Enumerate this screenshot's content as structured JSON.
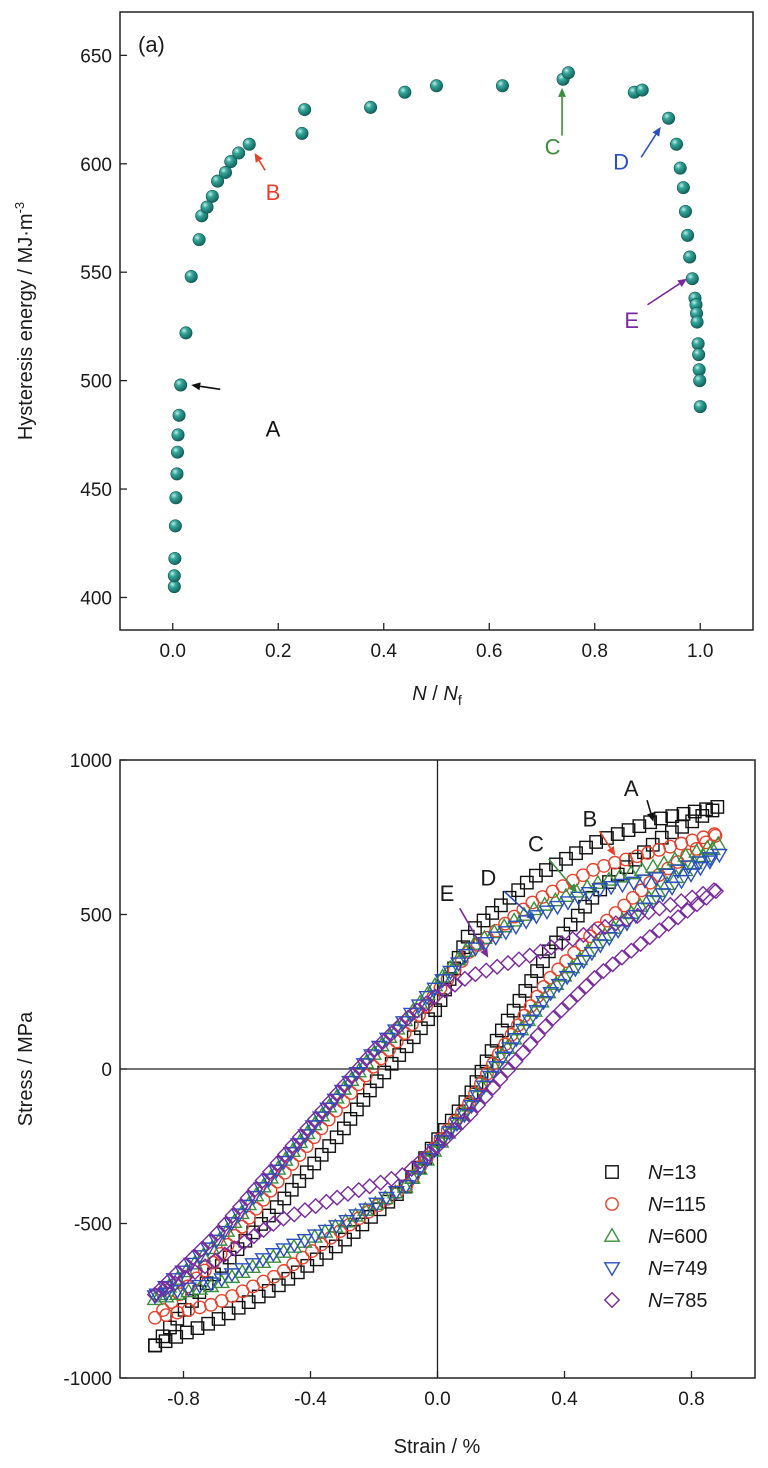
{
  "chart_data": [
    {
      "type": "scatter",
      "panel_label": "(a)",
      "xlabel": {
        "main": "N",
        "sep": " / ",
        "den": "N",
        "sub": "f"
      },
      "ylabel": {
        "main": "Hysteresis energy / MJ·m",
        "sup": "-3"
      },
      "xlim": [
        -0.1,
        1.1
      ],
      "ylim": [
        385,
        670
      ],
      "xticks": [
        "0.0",
        "0.2",
        "0.4",
        "0.6",
        "0.8",
        "1.0"
      ],
      "xtick_values": [
        0.0,
        0.2,
        0.4,
        0.6,
        0.8,
        1.0
      ],
      "yticks": [
        "400",
        "450",
        "500",
        "550",
        "600",
        "650"
      ],
      "ytick_values": [
        400,
        450,
        500,
        550,
        600,
        650
      ],
      "grid": false,
      "marker_color": "#1f8f86",
      "points": [
        {
          "x": 0.003,
          "y": 405
        },
        {
          "x": 0.003,
          "y": 410
        },
        {
          "x": 0.004,
          "y": 418
        },
        {
          "x": 0.005,
          "y": 433
        },
        {
          "x": 0.006,
          "y": 446
        },
        {
          "x": 0.008,
          "y": 457
        },
        {
          "x": 0.009,
          "y": 467
        },
        {
          "x": 0.01,
          "y": 475
        },
        {
          "x": 0.012,
          "y": 484
        },
        {
          "x": 0.015,
          "y": 498
        },
        {
          "x": 0.025,
          "y": 522
        },
        {
          "x": 0.035,
          "y": 548
        },
        {
          "x": 0.05,
          "y": 565
        },
        {
          "x": 0.055,
          "y": 576
        },
        {
          "x": 0.065,
          "y": 580
        },
        {
          "x": 0.075,
          "y": 585
        },
        {
          "x": 0.085,
          "y": 592
        },
        {
          "x": 0.1,
          "y": 596
        },
        {
          "x": 0.11,
          "y": 601
        },
        {
          "x": 0.125,
          "y": 605
        },
        {
          "x": 0.145,
          "y": 609
        },
        {
          "x": 0.245,
          "y": 614
        },
        {
          "x": 0.25,
          "y": 625
        },
        {
          "x": 0.375,
          "y": 626
        },
        {
          "x": 0.44,
          "y": 633
        },
        {
          "x": 0.5,
          "y": 636
        },
        {
          "x": 0.625,
          "y": 636
        },
        {
          "x": 0.74,
          "y": 639
        },
        {
          "x": 0.75,
          "y": 642
        },
        {
          "x": 0.875,
          "y": 633
        },
        {
          "x": 0.89,
          "y": 634
        },
        {
          "x": 0.94,
          "y": 621
        },
        {
          "x": 0.955,
          "y": 609
        },
        {
          "x": 0.962,
          "y": 598
        },
        {
          "x": 0.968,
          "y": 589
        },
        {
          "x": 0.972,
          "y": 578
        },
        {
          "x": 0.976,
          "y": 567
        },
        {
          "x": 0.98,
          "y": 557
        },
        {
          "x": 0.985,
          "y": 547
        },
        {
          "x": 0.99,
          "y": 538
        },
        {
          "x": 0.992,
          "y": 535
        },
        {
          "x": 0.993,
          "y": 531
        },
        {
          "x": 0.994,
          "y": 527
        },
        {
          "x": 0.996,
          "y": 517
        },
        {
          "x": 0.997,
          "y": 512
        },
        {
          "x": 0.998,
          "y": 505
        },
        {
          "x": 0.999,
          "y": 500
        },
        {
          "x": 1.0,
          "y": 488
        }
      ],
      "annotations": [
        {
          "text": "A",
          "color": "#111111",
          "label": [
            0.19,
            478
          ],
          "tip": [
            0.035,
            498
          ],
          "tail": [
            0.09,
            496
          ]
        },
        {
          "text": "B",
          "color": "#e8402a",
          "label": [
            0.19,
            587
          ],
          "tip": [
            0.155,
            605
          ],
          "tail": [
            0.175,
            597
          ]
        },
        {
          "text": "C",
          "color": "#3a8f3a",
          "label": [
            0.72,
            608
          ],
          "tip": [
            0.738,
            635
          ],
          "tail": [
            0.738,
            613
          ]
        },
        {
          "text": "D",
          "color": "#2a4fc0",
          "label": [
            0.85,
            601
          ],
          "tip": [
            0.925,
            617
          ],
          "tail": [
            0.888,
            603
          ]
        },
        {
          "text": "E",
          "color": "#7a2aa0",
          "label": [
            0.87,
            528
          ],
          "tip": [
            0.975,
            547
          ],
          "tail": [
            0.9,
            535
          ]
        }
      ]
    },
    {
      "type": "line",
      "xlabel": "Strain / %",
      "ylabel": "Stress / MPa",
      "xlim": [
        -1.0,
        1.0
      ],
      "ylim": [
        -1000,
        1000
      ],
      "xticks": [
        "-0.8",
        "-0.4",
        "0.0",
        "0.4",
        "0.8"
      ],
      "xtick_values": [
        -0.8,
        -0.4,
        0.0,
        0.4,
        0.8
      ],
      "yticks": [
        "-1000",
        "-500",
        "0",
        "500",
        "1000"
      ],
      "ytick_values": [
        -1000,
        -500,
        0,
        500,
        1000
      ],
      "grid": false,
      "reference_lines": {
        "x": 0,
        "y": 0
      },
      "legend_position": "bottom-right",
      "series": [
        {
          "name": "N=13",
          "legend_italic": "N",
          "legend_rest": "=13",
          "marker": "square",
          "color": "#111111",
          "loading": [
            [
              -0.89,
              -895
            ],
            [
              -0.7,
              -815
            ],
            [
              -0.5,
              -700
            ],
            [
              -0.3,
              -560
            ],
            [
              -0.1,
              -380
            ],
            [
              0.0,
              -230
            ],
            [
              0.1,
              -90
            ],
            [
              0.2,
              120
            ],
            [
              0.35,
              380
            ],
            [
              0.5,
              570
            ],
            [
              0.7,
              745
            ],
            [
              0.89,
              850
            ]
          ],
          "unloading": [
            [
              0.89,
              850
            ],
            [
              0.7,
              810
            ],
            [
              0.5,
              735
            ],
            [
              0.3,
              620
            ],
            [
              0.1,
              440
            ],
            [
              0.0,
              200
            ],
            [
              -0.1,
              70
            ],
            [
              -0.2,
              -50
            ],
            [
              -0.3,
              -200
            ],
            [
              -0.5,
              -440
            ],
            [
              -0.7,
              -660
            ],
            [
              -0.89,
              -895
            ]
          ]
        },
        {
          "name": "N=115",
          "legend_italic": "N",
          "legend_rest": "=115",
          "marker": "circle",
          "color": "#e8402a",
          "loading": [
            [
              -0.89,
              -805
            ],
            [
              -0.7,
              -760
            ],
            [
              -0.5,
              -665
            ],
            [
              -0.3,
              -520
            ],
            [
              -0.1,
              -380
            ],
            [
              0.0,
              -240
            ],
            [
              0.1,
              -110
            ],
            [
              0.2,
              60
            ],
            [
              0.35,
              290
            ],
            [
              0.5,
              450
            ],
            [
              0.7,
              630
            ],
            [
              0.89,
              765
            ]
          ],
          "unloading": [
            [
              0.89,
              765
            ],
            [
              0.7,
              710
            ],
            [
              0.5,
              650
            ],
            [
              0.3,
              540
            ],
            [
              0.1,
              380
            ],
            [
              0.0,
              250
            ],
            [
              -0.1,
              120
            ],
            [
              -0.2,
              10
            ],
            [
              -0.3,
              -110
            ],
            [
              -0.5,
              -360
            ],
            [
              -0.7,
              -620
            ],
            [
              -0.89,
              -805
            ]
          ]
        },
        {
          "name": "N=600",
          "legend_italic": "N",
          "legend_rest": "=600",
          "marker": "triangle-up",
          "color": "#3a8f3a",
          "loading": [
            [
              -0.89,
              -745
            ],
            [
              -0.7,
              -700
            ],
            [
              -0.5,
              -600
            ],
            [
              -0.3,
              -500
            ],
            [
              -0.1,
              -380
            ],
            [
              0.0,
              -250
            ],
            [
              0.1,
              -120
            ],
            [
              0.2,
              40
            ],
            [
              0.35,
              250
            ],
            [
              0.5,
              410
            ],
            [
              0.7,
              580
            ],
            [
              0.89,
              730
            ]
          ],
          "unloading": [
            [
              0.89,
              730
            ],
            [
              0.7,
              660
            ],
            [
              0.5,
              600
            ],
            [
              0.3,
              515
            ],
            [
              0.1,
              395
            ],
            [
              0.0,
              280
            ],
            [
              -0.1,
              160
            ],
            [
              -0.2,
              50
            ],
            [
              -0.3,
              -70
            ],
            [
              -0.5,
              -320
            ],
            [
              -0.7,
              -570
            ],
            [
              -0.89,
              -745
            ]
          ]
        },
        {
          "name": "N=749",
          "legend_italic": "N",
          "legend_rest": "=749",
          "marker": "triangle-down",
          "color": "#2a4fc0",
          "loading": [
            [
              -0.89,
              -735
            ],
            [
              -0.7,
              -690
            ],
            [
              -0.5,
              -590
            ],
            [
              -0.3,
              -500
            ],
            [
              -0.1,
              -380
            ],
            [
              0.0,
              -250
            ],
            [
              0.1,
              -130
            ],
            [
              0.2,
              30
            ],
            [
              0.35,
              240
            ],
            [
              0.5,
              390
            ],
            [
              0.7,
              560
            ],
            [
              0.89,
              695
            ]
          ],
          "unloading": [
            [
              0.89,
              695
            ],
            [
              0.7,
              620
            ],
            [
              0.5,
              580
            ],
            [
              0.3,
              490
            ],
            [
              0.1,
              380
            ],
            [
              0.0,
              270
            ],
            [
              -0.1,
              160
            ],
            [
              -0.2,
              55
            ],
            [
              -0.3,
              -70
            ],
            [
              -0.5,
              -320
            ],
            [
              -0.7,
              -560
            ],
            [
              -0.89,
              -735
            ]
          ]
        },
        {
          "name": "N=785",
          "legend_italic": "N",
          "legend_rest": "=785",
          "marker": "diamond",
          "color": "#7a2aa0",
          "loading": [
            [
              -0.89,
              -730
            ],
            [
              -0.7,
              -620
            ],
            [
              -0.5,
              -490
            ],
            [
              -0.3,
              -410
            ],
            [
              -0.1,
              -340
            ],
            [
              0.0,
              -250
            ],
            [
              0.1,
              -150
            ],
            [
              0.2,
              -30
            ],
            [
              0.35,
              150
            ],
            [
              0.5,
              300
            ],
            [
              0.7,
              450
            ],
            [
              0.89,
              585
            ]
          ],
          "unloading": [
            [
              0.89,
              585
            ],
            [
              0.7,
              520
            ],
            [
              0.5,
              450
            ],
            [
              0.3,
              370
            ],
            [
              0.1,
              300
            ],
            [
              0.0,
              240
            ],
            [
              -0.1,
              160
            ],
            [
              -0.2,
              60
            ],
            [
              -0.3,
              -60
            ],
            [
              -0.5,
              -300
            ],
            [
              -0.7,
              -540
            ],
            [
              -0.89,
              -730
            ]
          ]
        }
      ],
      "annotations": [
        {
          "text": "A",
          "color": "#111111",
          "label": [
            0.61,
            910
          ],
          "tip": [
            0.68,
            800
          ],
          "tail": [
            0.66,
            870
          ]
        },
        {
          "text": "B",
          "color": "#e8402a",
          "label": [
            0.48,
            810
          ],
          "tip": [
            0.56,
            690
          ],
          "tail": [
            0.51,
            770
          ]
        },
        {
          "text": "C",
          "color": "#3a8f3a",
          "label": [
            0.31,
            730
          ],
          "tip": [
            0.44,
            570
          ],
          "tail": [
            0.35,
            680
          ]
        },
        {
          "text": "D",
          "color": "#2a4fc0",
          "label": [
            0.16,
            620
          ],
          "tip": [
            0.31,
            480
          ],
          "tail": [
            0.21,
            575
          ]
        },
        {
          "text": "E",
          "color": "#7a2aa0",
          "label": [
            0.03,
            570
          ],
          "tip": [
            0.16,
            360
          ],
          "tail": [
            0.07,
            520
          ]
        }
      ]
    }
  ]
}
